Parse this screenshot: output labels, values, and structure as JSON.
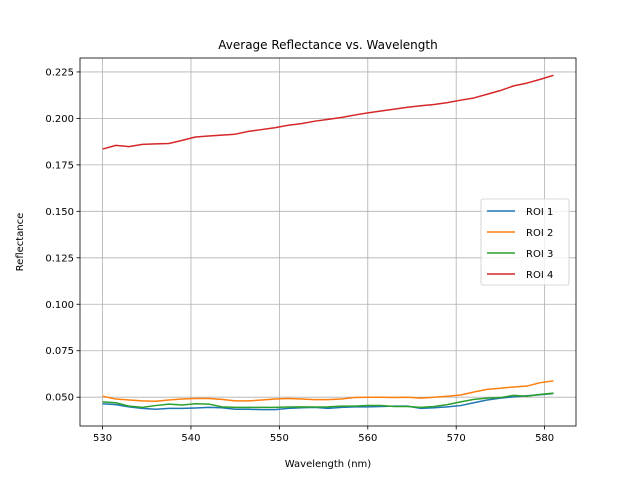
{
  "chart_data": {
    "type": "line",
    "title": "Average Reflectance vs. Wavelength",
    "xlabel": "Wavelength (nm)",
    "ylabel": "Reflectance",
    "xlim": [
      527.45,
      583.55
    ],
    "ylim": [
      0.0345,
      0.2325
    ],
    "xticks": [
      "530",
      "540",
      "550",
      "560",
      "570",
      "580"
    ],
    "yticks": [
      "0.050",
      "0.075",
      "0.100",
      "0.125",
      "0.150",
      "0.175",
      "0.200",
      "0.225"
    ],
    "grid": true,
    "legend": "center-right",
    "x": [
      530,
      531.5,
      533,
      534.5,
      536,
      537.5,
      539,
      540.5,
      542,
      543.5,
      545,
      546.5,
      548,
      549.5,
      551,
      552.5,
      554,
      555.5,
      557,
      558.5,
      560,
      561.5,
      563,
      564.5,
      566,
      567.5,
      569,
      570.5,
      572,
      573.5,
      575,
      576.5,
      578,
      579.5,
      581
    ],
    "series": [
      {
        "name": "ROI 1",
        "color": "#1f77b4",
        "values": [
          0.0465,
          0.046,
          0.0448,
          0.044,
          0.0435,
          0.044,
          0.044,
          0.0442,
          0.0445,
          0.0443,
          0.0435,
          0.0435,
          0.0433,
          0.0433,
          0.044,
          0.0443,
          0.0445,
          0.044,
          0.0445,
          0.0448,
          0.0448,
          0.045,
          0.0452,
          0.0452,
          0.044,
          0.0443,
          0.0448,
          0.0455,
          0.047,
          0.0485,
          0.0495,
          0.0502,
          0.0508,
          0.0513,
          0.052
        ]
      },
      {
        "name": "ROI 2",
        "color": "#ff7f0e",
        "values": [
          0.0505,
          0.049,
          0.0485,
          0.048,
          0.0478,
          0.0485,
          0.049,
          0.0493,
          0.0493,
          0.0488,
          0.048,
          0.048,
          0.0485,
          0.049,
          0.0493,
          0.049,
          0.0487,
          0.0487,
          0.049,
          0.0498,
          0.05,
          0.05,
          0.0498,
          0.05,
          0.0495,
          0.05,
          0.0505,
          0.0512,
          0.0528,
          0.0542,
          0.0548,
          0.0555,
          0.056,
          0.0578,
          0.0588
        ]
      },
      {
        "name": "ROI 3",
        "color": "#2ca02c",
        "values": [
          0.0475,
          0.047,
          0.0452,
          0.0445,
          0.0455,
          0.0463,
          0.0458,
          0.0465,
          0.0463,
          0.0448,
          0.0445,
          0.0445,
          0.0445,
          0.0445,
          0.0447,
          0.0448,
          0.0447,
          0.0448,
          0.0452,
          0.0452,
          0.0455,
          0.0455,
          0.045,
          0.045,
          0.0445,
          0.045,
          0.046,
          0.0475,
          0.0488,
          0.0495,
          0.0498,
          0.051,
          0.0505,
          0.0515,
          0.0522
        ]
      },
      {
        "name": "ROI 4",
        "color": "#d62728",
        "values": [
          0.1835,
          0.1855,
          0.1848,
          0.186,
          0.1863,
          0.1865,
          0.1882,
          0.19,
          0.1905,
          0.191,
          0.1915,
          0.193,
          0.194,
          0.195,
          0.1963,
          0.1972,
          0.1985,
          0.1995,
          0.2005,
          0.2018,
          0.203,
          0.204,
          0.205,
          0.206,
          0.2068,
          0.2075,
          0.2085,
          0.2098,
          0.211,
          0.213,
          0.215,
          0.2175,
          0.219,
          0.221,
          0.2232
        ]
      }
    ]
  }
}
